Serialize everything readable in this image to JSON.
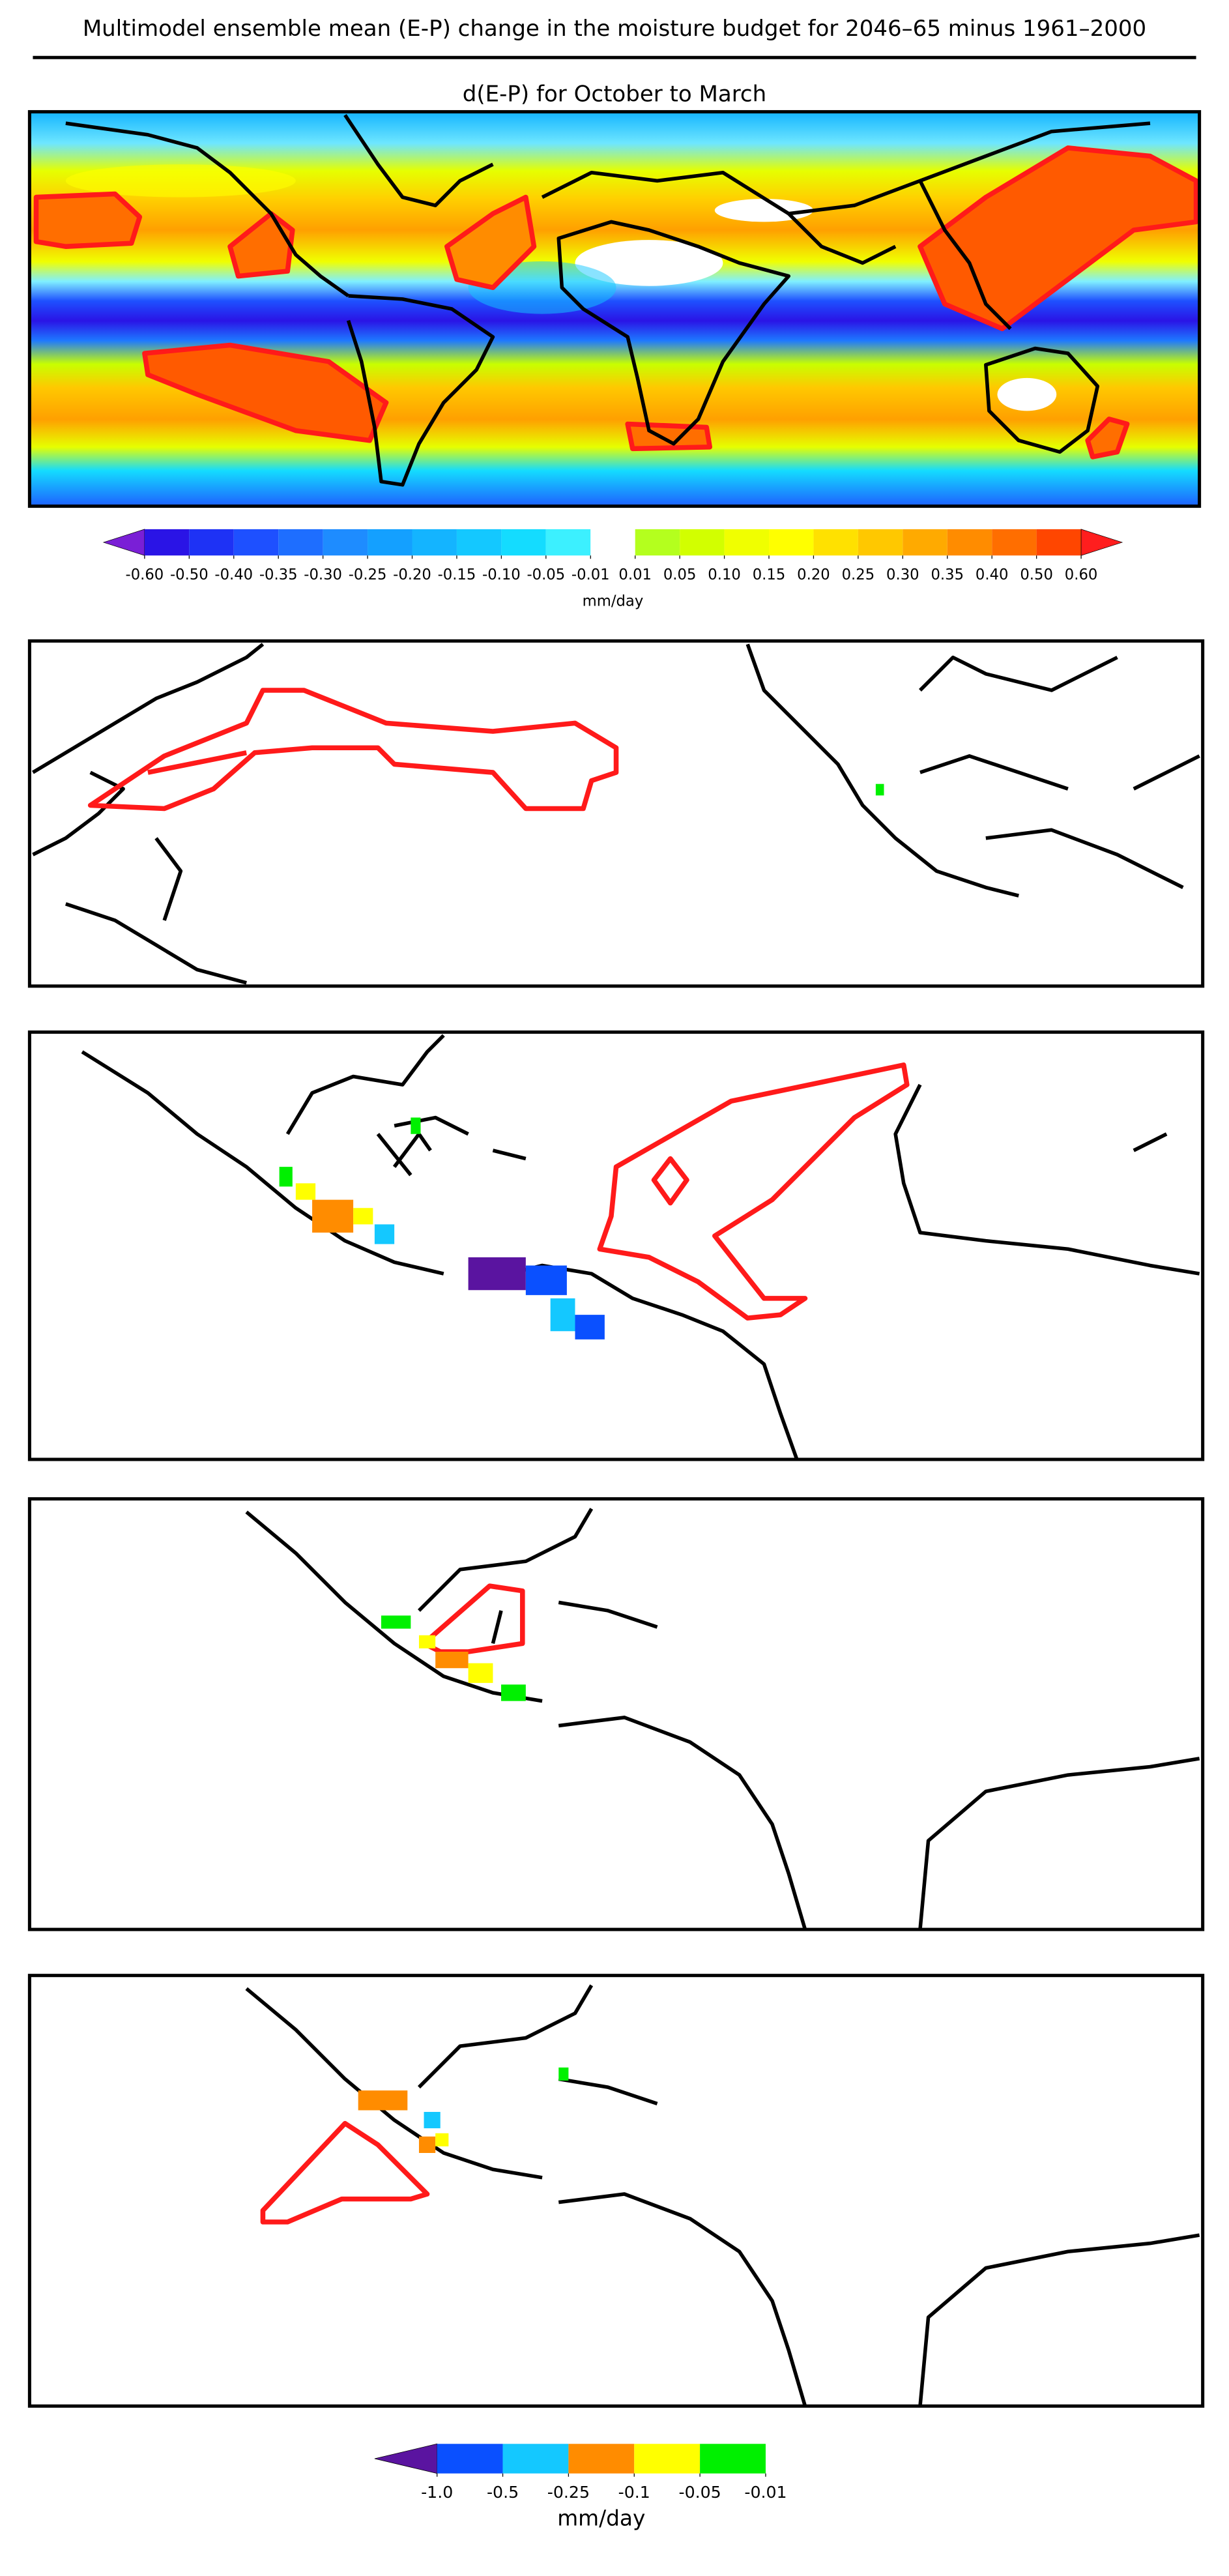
{
  "title": "Multimodel ensemble mean (E-P) change in the moisture budget for 2046–65 minus 1961–2000",
  "subtitle": "d(E-P) for October to March",
  "colorbars": [
    {
      "units": "mm/day",
      "ticks": [
        {
          "value": -0.6,
          "label": "-0.60"
        },
        {
          "value": -0.5,
          "label": "-0.50"
        },
        {
          "value": -0.4,
          "label": "-0.40"
        },
        -0.35,
        {
          "value": -0.3,
          "label": "-0.30"
        },
        -0.25,
        {
          "value": -0.2,
          "label": "-0.20"
        },
        -0.15,
        {
          "value": -0.1,
          "label": "-0.10"
        },
        -0.05,
        -0.01,
        0.01,
        0.05,
        {
          "value": 0.1,
          "label": "0.10"
        },
        0.15,
        {
          "value": 0.2,
          "label": "0.20"
        },
        0.25,
        {
          "value": 0.3,
          "label": "0.30"
        },
        0.35,
        {
          "value": 0.4,
          "label": "0.40"
        },
        {
          "value": 0.5,
          "label": "0.50"
        },
        {
          "value": 0.6,
          "label": "0.60"
        }
      ],
      "colors": [
        "#7a1fd6",
        "#2a14e6",
        "#1e32f5",
        "#1e50ff",
        "#1e6eff",
        "#1e8cff",
        "#14a0ff",
        "#14b4ff",
        "#14c8ff",
        "#14dcff",
        "#3cf0ff",
        "#ffffff",
        "#b4ff1e",
        "#d2ff00",
        "#f0ff00",
        "#ffff00",
        "#ffe100",
        "#ffc800",
        "#ffaa00",
        "#ff8c00",
        "#ff6e00",
        "#ff4600",
        "#ff1e1e"
      ]
    },
    {
      "units": "mm/day",
      "ticks": [
        {
          "value": -1.0,
          "label": "-1.0"
        },
        -0.5,
        -0.25,
        -0.1,
        -0.05,
        -0.01
      ],
      "colors": [
        "#5a14a0",
        "#0a50ff",
        "#14c8ff",
        "#ff8c00",
        "#ffff00",
        "#00f000"
      ]
    }
  ]
}
